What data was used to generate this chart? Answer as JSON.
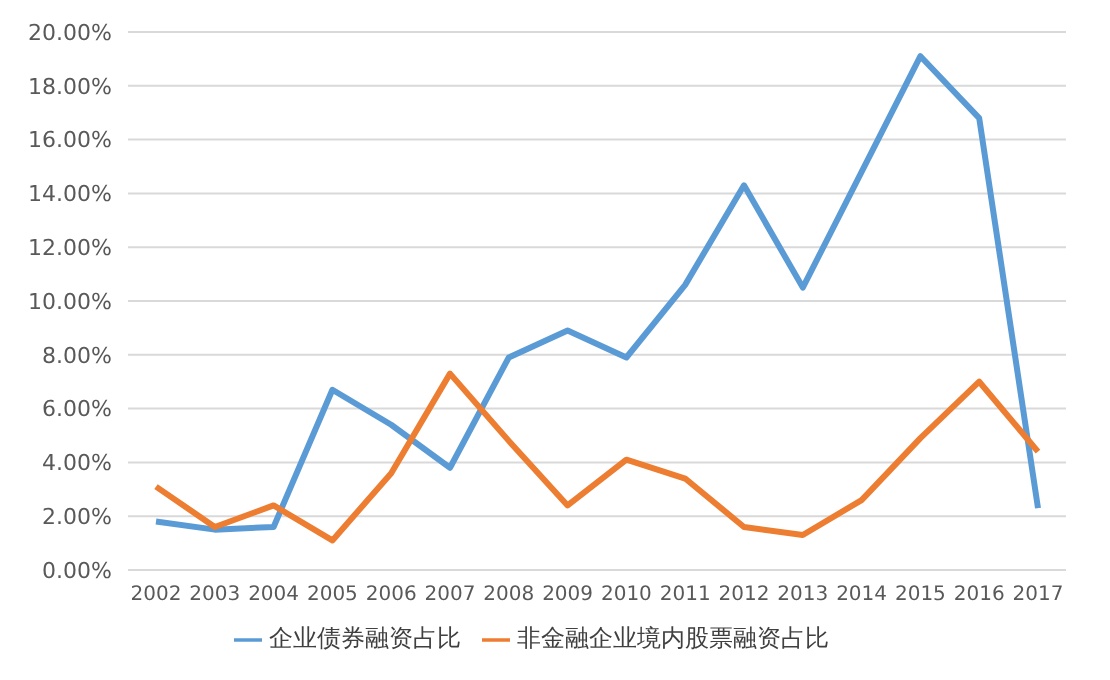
{
  "chart_data": {
    "type": "line",
    "categories": [
      "2002",
      "2003",
      "2004",
      "2005",
      "2006",
      "2007",
      "2008",
      "2009",
      "2010",
      "2011",
      "2012",
      "2013",
      "2014",
      "2015",
      "2016",
      "2017"
    ],
    "series": [
      {
        "name": "企业债券融资占比",
        "color": "#5b9bd5",
        "values": [
          1.8,
          1.5,
          1.6,
          6.7,
          5.4,
          3.8,
          7.9,
          8.9,
          7.9,
          10.6,
          14.3,
          10.5,
          14.8,
          19.1,
          16.8,
          2.3
        ]
      },
      {
        "name": "非金融企业境内股票融资占比",
        "color": "#ed7d31",
        "values": [
          3.1,
          1.6,
          2.4,
          1.1,
          3.6,
          7.3,
          4.8,
          2.4,
          4.1,
          3.4,
          1.6,
          1.3,
          2.6,
          4.9,
          7.0,
          4.4
        ]
      }
    ],
    "ylim": [
      0,
      20
    ],
    "yticks": [
      {
        "value": 0,
        "label": "0.00%"
      },
      {
        "value": 2,
        "label": "2.00%"
      },
      {
        "value": 4,
        "label": "4.00%"
      },
      {
        "value": 6,
        "label": "6.00%"
      },
      {
        "value": 8,
        "label": "8.00%"
      },
      {
        "value": 10,
        "label": "10.00%"
      },
      {
        "value": 12,
        "label": "12.00%"
      },
      {
        "value": 14,
        "label": "14.00%"
      },
      {
        "value": 16,
        "label": "16.00%"
      },
      {
        "value": 18,
        "label": "18.00%"
      },
      {
        "value": 20,
        "label": "20.00%"
      }
    ],
    "grid": "y",
    "legend": "bottom",
    "marker": "none",
    "line_style": "solid"
  }
}
